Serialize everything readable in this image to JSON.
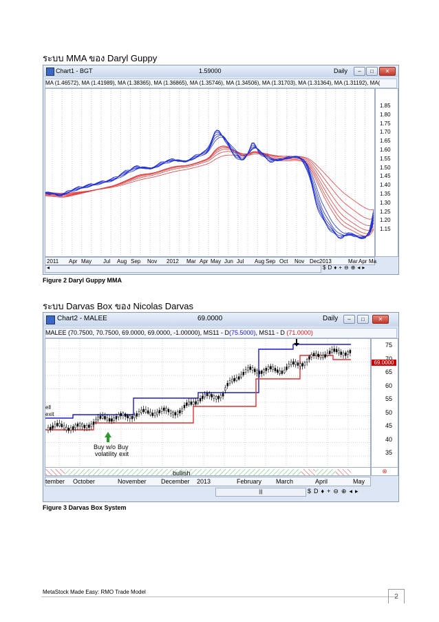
{
  "figure1": {
    "heading": "ระบบ MMA ของ Daryl Guppy",
    "window_title": "Chart1 - BGT",
    "price": "1.59000",
    "period": "Daily",
    "legend": "MA (1.46572), MA (1.41989), MA (1.38365), MA (1.36865), MA (1.35746), MA (1.34506), MA (1.31703), MA (1.31364), MA (1.31192), MA(",
    "y_ticks": [
      "1.85",
      "1.80",
      "1.75",
      "1.70",
      "1.65",
      "1.60",
      "1.55",
      "1.50",
      "1.45",
      "1.40",
      "1.35",
      "1.30",
      "1.25",
      "1.20",
      "1.15"
    ],
    "x_ticks": [
      "2011",
      "Apr",
      "May",
      "Jul",
      "Aug",
      "Sep",
      "Nov",
      "2012",
      "Mar",
      "Apr",
      "May",
      "Jun",
      "Jul",
      "Aug",
      "Sep",
      "Oct",
      "Nov",
      "Dec",
      "2013",
      "Mar",
      "Apr",
      "Ma"
    ],
    "caption": "Figure 2 Daryl Guppy MMA",
    "colors": {
      "short_ma": "#1f2fd0",
      "long_ma": "#e04040"
    }
  },
  "figure2": {
    "heading": "ระบบ Darvas Box ของ Nicolas Darvas",
    "window_title": "Chart2 - MALEE",
    "price": "69.0000",
    "period": "Daily",
    "legend_main": "MALEE (70.7500, 70.7500, 69.0000, 69.0000, -1.00000), MS11 - D",
    "legend_val1": "(75.5000)",
    "legend_mid": ", MS11 - D",
    "legend_val2": "(71.0000)",
    "y_ticks": [
      "75",
      "70",
      "65",
      "60",
      "55",
      "50",
      "45",
      "40",
      "35"
    ],
    "price_tag": "69.0000",
    "annotation_left": "ell\nexit",
    "annotation_buy": "Buy w/o\nvolatility",
    "annotation_buy_exit": "Buy\nexit",
    "bullish_label": "bullish",
    "x_ticks": [
      "tember",
      "October",
      "November",
      "December",
      "2013",
      "February",
      "March",
      "April",
      "May"
    ],
    "caption": "Figure 3 Darvas Box System",
    "colors": {
      "upper_box": "#1a1ad0",
      "lower_box": "#e03030"
    }
  },
  "footer": {
    "left": "MetaStock Made Easy: RMO Trade Model",
    "page_number": "2"
  }
}
